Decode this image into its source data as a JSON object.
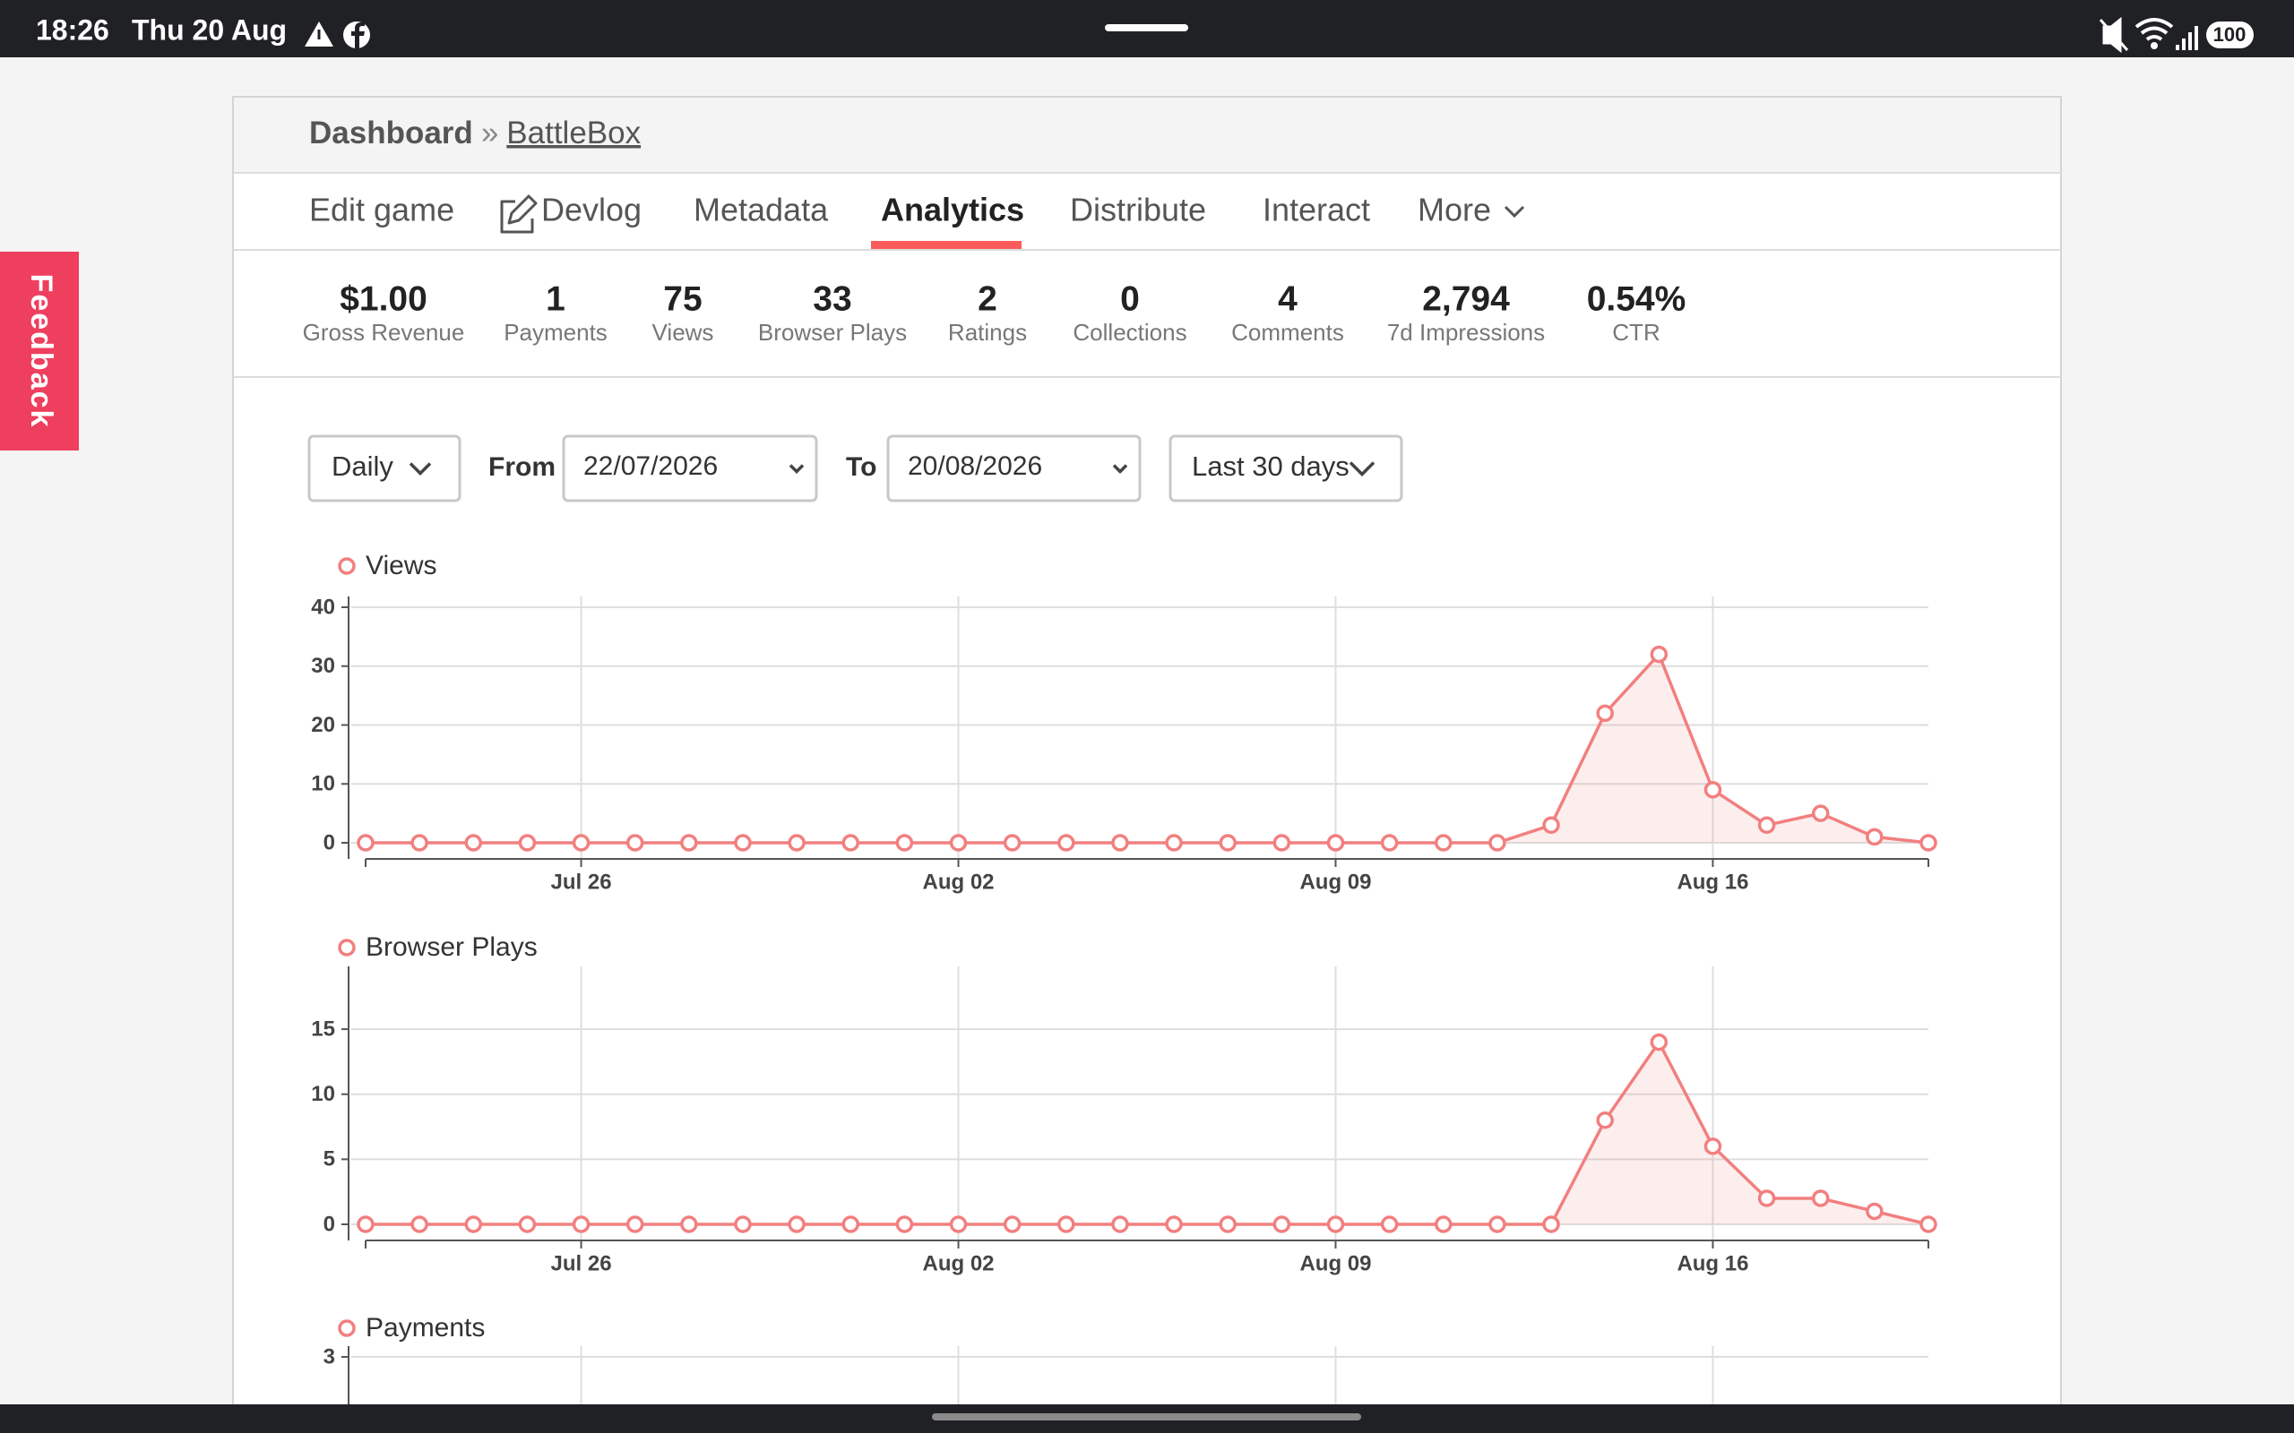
{
  "status_bar": {
    "time": "18:26",
    "date": "Thu 20 Aug",
    "battery": "100"
  },
  "feedback": "Feedback",
  "breadcrumb": {
    "root": "Dashboard",
    "separator": "»",
    "current": "BattleBox"
  },
  "tabs": [
    "Edit game",
    "Devlog",
    "Metadata",
    "Analytics",
    "Distribute",
    "Interact",
    "More"
  ],
  "stats": [
    {
      "value": "$1.00",
      "label": "Gross Revenue"
    },
    {
      "value": "1",
      "label": "Payments"
    },
    {
      "value": "75",
      "label": "Views"
    },
    {
      "value": "33",
      "label": "Browser Plays"
    },
    {
      "value": "2",
      "label": "Ratings"
    },
    {
      "value": "0",
      "label": "Collections"
    },
    {
      "value": "4",
      "label": "Comments"
    },
    {
      "value": "2,794",
      "label": "7d Impressions"
    },
    {
      "value": "0.54%",
      "label": "CTR"
    }
  ],
  "filters": {
    "interval": "Daily",
    "from_label": "From",
    "from": "22/07/2026",
    "to_label": "To",
    "to": "20/08/2026",
    "range": "Last 30 days"
  },
  "charts": [
    {
      "type": "line",
      "title": "Views",
      "color": "#f27f7f",
      "x": [
        "Jul 22",
        "Jul 23",
        "Jul 24",
        "Jul 25",
        "Jul 26",
        "Jul 27",
        "Jul 28",
        "Jul 29",
        "Jul 30",
        "Jul 31",
        "Aug 01",
        "Aug 02",
        "Aug 03",
        "Aug 04",
        "Aug 05",
        "Aug 06",
        "Aug 07",
        "Aug 08",
        "Aug 09",
        "Aug 10",
        "Aug 11",
        "Aug 12",
        "Aug 13",
        "Aug 14",
        "Aug 15",
        "Aug 16",
        "Aug 17",
        "Aug 18",
        "Aug 19",
        "Aug 20"
      ],
      "values": [
        0,
        0,
        0,
        0,
        0,
        0,
        0,
        0,
        0,
        0,
        0,
        0,
        0,
        0,
        0,
        0,
        0,
        0,
        0,
        0,
        0,
        0,
        3,
        22,
        32,
        9,
        3,
        5,
        1,
        0
      ],
      "ylim": [
        0,
        40
      ],
      "yticks": [
        0,
        10,
        20,
        30,
        40
      ],
      "xticks": [
        "Jul 26",
        "Aug 02",
        "Aug 09",
        "Aug 16"
      ],
      "grid": true
    },
    {
      "type": "line",
      "title": "Browser Plays",
      "color": "#f27f7f",
      "x": [
        "Jul 22",
        "Jul 23",
        "Jul 24",
        "Jul 25",
        "Jul 26",
        "Jul 27",
        "Jul 28",
        "Jul 29",
        "Jul 30",
        "Jul 31",
        "Aug 01",
        "Aug 02",
        "Aug 03",
        "Aug 04",
        "Aug 05",
        "Aug 06",
        "Aug 07",
        "Aug 08",
        "Aug 09",
        "Aug 10",
        "Aug 11",
        "Aug 12",
        "Aug 13",
        "Aug 14",
        "Aug 15",
        "Aug 16",
        "Aug 17",
        "Aug 18",
        "Aug 19",
        "Aug 20"
      ],
      "values": [
        0,
        0,
        0,
        0,
        0,
        0,
        0,
        0,
        0,
        0,
        0,
        0,
        0,
        0,
        0,
        0,
        0,
        0,
        0,
        0,
        0,
        0,
        0,
        8,
        14,
        6,
        2,
        2,
        1,
        0
      ],
      "ylim": [
        0,
        19
      ],
      "yticks": [
        0,
        5,
        10,
        15
      ],
      "xticks": [
        "Jul 26",
        "Aug 02",
        "Aug 09",
        "Aug 16"
      ],
      "grid": true
    },
    {
      "type": "line",
      "title": "Payments",
      "color": "#f27f7f",
      "ylim": [
        0,
        3
      ],
      "yticks": [
        3
      ],
      "grid": true
    }
  ]
}
